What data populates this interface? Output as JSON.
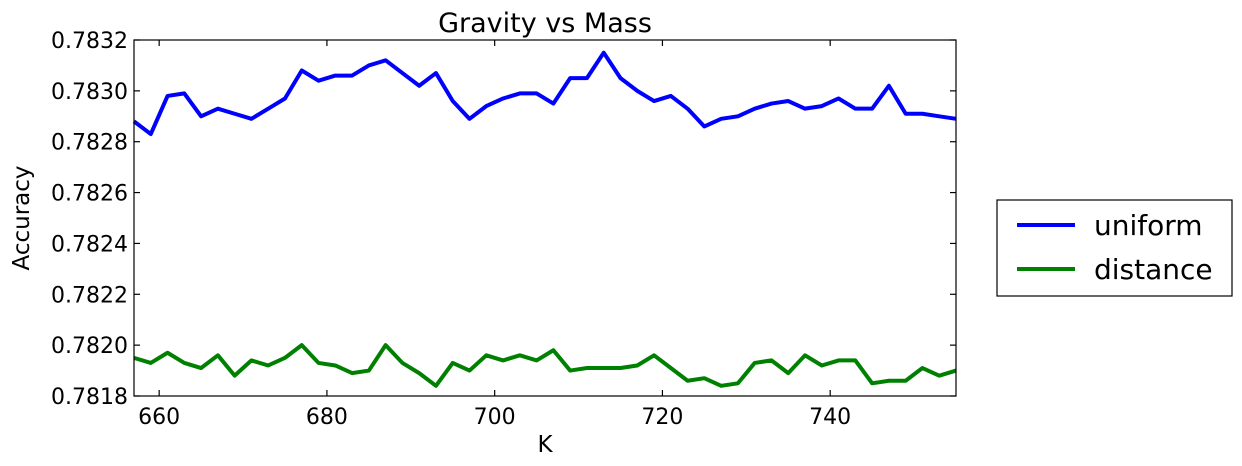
{
  "chart_data": {
    "type": "line",
    "title": "Gravity vs Mass",
    "xlabel": "K",
    "ylabel": "Accuracy",
    "xlim": [
      657,
      755
    ],
    "ylim": [
      0.7818,
      0.7832
    ],
    "xticks": [
      660,
      680,
      700,
      720,
      740
    ],
    "yticks": [
      "0.7818",
      "0.7820",
      "0.7822",
      "0.7824",
      "0.7826",
      "0.7828",
      "0.7830",
      "0.7832"
    ],
    "grid": false,
    "legend_position": "right",
    "x": [
      657,
      659,
      661,
      663,
      665,
      667,
      669,
      671,
      673,
      675,
      677,
      679,
      681,
      683,
      685,
      687,
      689,
      691,
      693,
      695,
      697,
      699,
      701,
      703,
      705,
      707,
      709,
      711,
      713,
      715,
      717,
      719,
      721,
      723,
      725,
      727,
      729,
      731,
      733,
      735,
      737,
      739,
      741,
      743,
      745,
      747,
      749,
      751,
      753,
      755
    ],
    "series": [
      {
        "name": "uniform",
        "color": "#0000ff",
        "values": [
          0.78288,
          0.78283,
          0.78298,
          0.78299,
          0.7829,
          0.78293,
          0.78291,
          0.78289,
          0.78293,
          0.78297,
          0.78308,
          0.78304,
          0.78306,
          0.78306,
          0.7831,
          0.78312,
          0.78307,
          0.78302,
          0.78307,
          0.78296,
          0.78289,
          0.78294,
          0.78297,
          0.78299,
          0.78299,
          0.78295,
          0.78305,
          0.78305,
          0.78315,
          0.78305,
          0.783,
          0.78296,
          0.78298,
          0.78293,
          0.78286,
          0.78289,
          0.7829,
          0.78293,
          0.78295,
          0.78296,
          0.78293,
          0.78294,
          0.78297,
          0.78293,
          0.78293,
          0.78302,
          0.78291,
          0.78291,
          0.7829,
          0.78289
        ]
      },
      {
        "name": "distance",
        "color": "#008000",
        "values": [
          0.78195,
          0.78193,
          0.78197,
          0.78193,
          0.78191,
          0.78196,
          0.78188,
          0.78194,
          0.78192,
          0.78195,
          0.782,
          0.78193,
          0.78192,
          0.78189,
          0.7819,
          0.782,
          0.78193,
          0.78189,
          0.78184,
          0.78193,
          0.7819,
          0.78196,
          0.78194,
          0.78196,
          0.78194,
          0.78198,
          0.7819,
          0.78191,
          0.78191,
          0.78191,
          0.78192,
          0.78196,
          0.78191,
          0.78186,
          0.78187,
          0.78184,
          0.78185,
          0.78193,
          0.78194,
          0.78189,
          0.78196,
          0.78192,
          0.78194,
          0.78194,
          0.78185,
          0.78186,
          0.78186,
          0.78191,
          0.78188,
          0.7819
        ]
      }
    ]
  }
}
